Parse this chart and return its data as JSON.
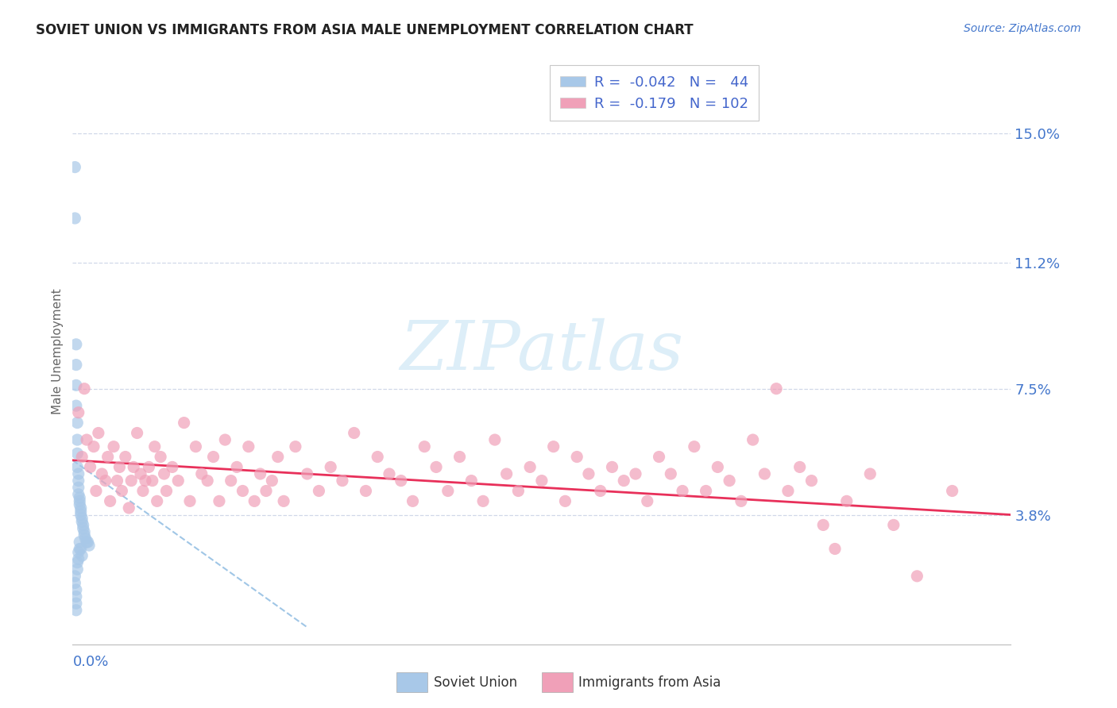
{
  "title": "SOVIET UNION VS IMMIGRANTS FROM ASIA MALE UNEMPLOYMENT CORRELATION CHART",
  "source_text": "Source: ZipAtlas.com",
  "ylabel": "Male Unemployment",
  "ytick_vals": [
    0.038,
    0.075,
    0.112,
    0.15
  ],
  "ytick_labels": [
    "3.8%",
    "7.5%",
    "11.2%",
    "15.0%"
  ],
  "xmin": 0.0,
  "xmax": 0.8,
  "ymin": 0.0,
  "ymax": 0.172,
  "soviet_color": "#a8c8e8",
  "asia_color": "#f0a0b8",
  "asia_line_color": "#e8305a",
  "soviet_line_color": "#88b8e0",
  "bg_color": "#ffffff",
  "grid_color": "#d0d8e8",
  "watermark_color": "#ddeef8",
  "tick_label_color": "#4477cc",
  "title_color": "#222222",
  "source_color": "#4477cc",
  "legend_text_color": "#223388",
  "legend_r_color": "#4466cc",
  "soviet_union_points": [
    [
      0.002,
      0.14
    ],
    [
      0.002,
      0.125
    ],
    [
      0.003,
      0.088
    ],
    [
      0.003,
      0.082
    ],
    [
      0.003,
      0.076
    ],
    [
      0.003,
      0.07
    ],
    [
      0.004,
      0.065
    ],
    [
      0.004,
      0.06
    ],
    [
      0.004,
      0.056
    ],
    [
      0.004,
      0.052
    ],
    [
      0.005,
      0.05
    ],
    [
      0.005,
      0.048
    ],
    [
      0.005,
      0.046
    ],
    [
      0.005,
      0.044
    ],
    [
      0.006,
      0.043
    ],
    [
      0.006,
      0.042
    ],
    [
      0.006,
      0.041
    ],
    [
      0.007,
      0.04
    ],
    [
      0.007,
      0.039
    ],
    [
      0.007,
      0.038
    ],
    [
      0.008,
      0.037
    ],
    [
      0.008,
      0.036
    ],
    [
      0.009,
      0.035
    ],
    [
      0.009,
      0.034
    ],
    [
      0.01,
      0.033
    ],
    [
      0.01,
      0.032
    ],
    [
      0.011,
      0.031
    ],
    [
      0.012,
      0.03
    ],
    [
      0.013,
      0.03
    ],
    [
      0.014,
      0.029
    ],
    [
      0.002,
      0.02
    ],
    [
      0.002,
      0.018
    ],
    [
      0.003,
      0.016
    ],
    [
      0.003,
      0.014
    ],
    [
      0.003,
      0.012
    ],
    [
      0.003,
      0.01
    ],
    [
      0.004,
      0.022
    ],
    [
      0.004,
      0.024
    ],
    [
      0.005,
      0.025
    ],
    [
      0.005,
      0.027
    ],
    [
      0.006,
      0.028
    ],
    [
      0.006,
      0.03
    ],
    [
      0.007,
      0.028
    ],
    [
      0.008,
      0.026
    ]
  ],
  "asia_points": [
    [
      0.005,
      0.068
    ],
    [
      0.008,
      0.055
    ],
    [
      0.01,
      0.075
    ],
    [
      0.012,
      0.06
    ],
    [
      0.015,
      0.052
    ],
    [
      0.018,
      0.058
    ],
    [
      0.02,
      0.045
    ],
    [
      0.022,
      0.062
    ],
    [
      0.025,
      0.05
    ],
    [
      0.028,
      0.048
    ],
    [
      0.03,
      0.055
    ],
    [
      0.032,
      0.042
    ],
    [
      0.035,
      0.058
    ],
    [
      0.038,
      0.048
    ],
    [
      0.04,
      0.052
    ],
    [
      0.042,
      0.045
    ],
    [
      0.045,
      0.055
    ],
    [
      0.048,
      0.04
    ],
    [
      0.05,
      0.048
    ],
    [
      0.052,
      0.052
    ],
    [
      0.055,
      0.062
    ],
    [
      0.058,
      0.05
    ],
    [
      0.06,
      0.045
    ],
    [
      0.062,
      0.048
    ],
    [
      0.065,
      0.052
    ],
    [
      0.068,
      0.048
    ],
    [
      0.07,
      0.058
    ],
    [
      0.072,
      0.042
    ],
    [
      0.075,
      0.055
    ],
    [
      0.078,
      0.05
    ],
    [
      0.08,
      0.045
    ],
    [
      0.085,
      0.052
    ],
    [
      0.09,
      0.048
    ],
    [
      0.095,
      0.065
    ],
    [
      0.1,
      0.042
    ],
    [
      0.105,
      0.058
    ],
    [
      0.11,
      0.05
    ],
    [
      0.115,
      0.048
    ],
    [
      0.12,
      0.055
    ],
    [
      0.125,
      0.042
    ],
    [
      0.13,
      0.06
    ],
    [
      0.135,
      0.048
    ],
    [
      0.14,
      0.052
    ],
    [
      0.145,
      0.045
    ],
    [
      0.15,
      0.058
    ],
    [
      0.155,
      0.042
    ],
    [
      0.16,
      0.05
    ],
    [
      0.165,
      0.045
    ],
    [
      0.17,
      0.048
    ],
    [
      0.175,
      0.055
    ],
    [
      0.18,
      0.042
    ],
    [
      0.19,
      0.058
    ],
    [
      0.2,
      0.05
    ],
    [
      0.21,
      0.045
    ],
    [
      0.22,
      0.052
    ],
    [
      0.23,
      0.048
    ],
    [
      0.24,
      0.062
    ],
    [
      0.25,
      0.045
    ],
    [
      0.26,
      0.055
    ],
    [
      0.27,
      0.05
    ],
    [
      0.28,
      0.048
    ],
    [
      0.29,
      0.042
    ],
    [
      0.3,
      0.058
    ],
    [
      0.31,
      0.052
    ],
    [
      0.32,
      0.045
    ],
    [
      0.33,
      0.055
    ],
    [
      0.34,
      0.048
    ],
    [
      0.35,
      0.042
    ],
    [
      0.36,
      0.06
    ],
    [
      0.37,
      0.05
    ],
    [
      0.38,
      0.045
    ],
    [
      0.39,
      0.052
    ],
    [
      0.4,
      0.048
    ],
    [
      0.41,
      0.058
    ],
    [
      0.42,
      0.042
    ],
    [
      0.43,
      0.055
    ],
    [
      0.44,
      0.05
    ],
    [
      0.45,
      0.045
    ],
    [
      0.46,
      0.052
    ],
    [
      0.47,
      0.048
    ],
    [
      0.48,
      0.05
    ],
    [
      0.49,
      0.042
    ],
    [
      0.5,
      0.055
    ],
    [
      0.51,
      0.05
    ],
    [
      0.52,
      0.045
    ],
    [
      0.53,
      0.058
    ],
    [
      0.54,
      0.045
    ],
    [
      0.55,
      0.052
    ],
    [
      0.56,
      0.048
    ],
    [
      0.57,
      0.042
    ],
    [
      0.58,
      0.06
    ],
    [
      0.59,
      0.05
    ],
    [
      0.6,
      0.075
    ],
    [
      0.61,
      0.045
    ],
    [
      0.62,
      0.052
    ],
    [
      0.63,
      0.048
    ],
    [
      0.64,
      0.035
    ],
    [
      0.65,
      0.028
    ],
    [
      0.66,
      0.042
    ],
    [
      0.68,
      0.05
    ],
    [
      0.7,
      0.035
    ],
    [
      0.72,
      0.02
    ],
    [
      0.75,
      0.045
    ]
  ],
  "su_trend_x0": 0.0,
  "su_trend_y0": 0.054,
  "su_trend_x1": 0.2,
  "su_trend_y1": 0.005,
  "asia_trend_x0": 0.0,
  "asia_trend_y0": 0.054,
  "asia_trend_x1": 0.8,
  "asia_trend_y1": 0.038
}
